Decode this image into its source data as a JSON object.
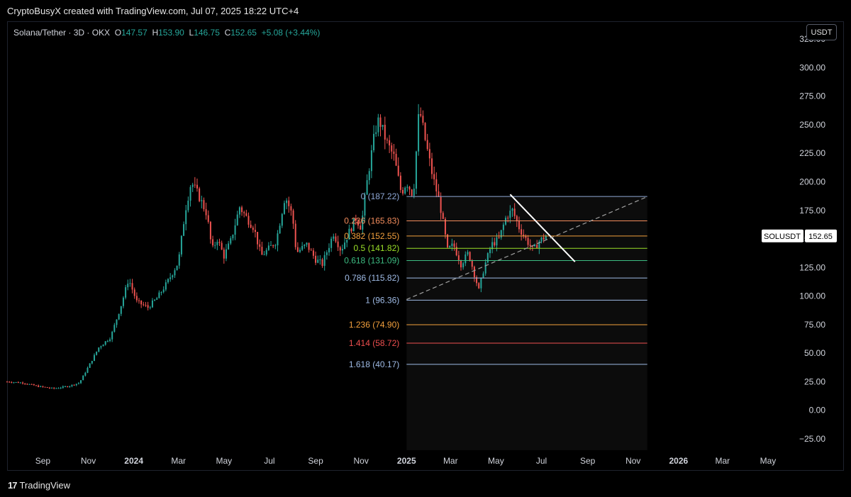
{
  "header": {
    "attribution": "CryptoBusyX created with TradingView.com, Jul 07, 2025 18:22 UTC+4"
  },
  "legend": {
    "symbol": "Solana/Tether · 3D · OKX",
    "open_label": "O",
    "open": "147.57",
    "high_label": "H",
    "high": "153.90",
    "low_label": "L",
    "low": "146.75",
    "close_label": "C",
    "close": "152.65",
    "change": "+5.08 (+3.44%)"
  },
  "currency_button": "USDT",
  "footer": {
    "brand": "TradingView",
    "logo_glyph": "17"
  },
  "colors": {
    "up": "#26a69a",
    "down": "#ef5350",
    "background": "#000000"
  },
  "chart_data": {
    "type": "candlestick",
    "symbol": "SOLUSDT",
    "title": "Solana/Tether · 3D · OKX",
    "last_price": 152.65,
    "price_tag_label": "SOLUSDT",
    "price_tag_value": "152.65",
    "ylim": [
      -35,
      340
    ],
    "y_ticks": [
      -25,
      0,
      25,
      50,
      75,
      100,
      125,
      150,
      175,
      200,
      225,
      250,
      275,
      300,
      325
    ],
    "y_tick_labels": [
      "−25.00",
      "0.00",
      "25.00",
      "50.00",
      "75.00",
      "100.00",
      "125.00",
      "150.00",
      "175.00",
      "200.00",
      "225.00",
      "250.00",
      "275.00",
      "300.00",
      "325.00"
    ],
    "x_ticks": [
      {
        "date": "2023-09-01",
        "label": "Sep",
        "bold": false
      },
      {
        "date": "2023-11-01",
        "label": "Nov",
        "bold": false
      },
      {
        "date": "2024-01-01",
        "label": "2024",
        "bold": true
      },
      {
        "date": "2024-03-01",
        "label": "Mar",
        "bold": false
      },
      {
        "date": "2024-05-01",
        "label": "May",
        "bold": false
      },
      {
        "date": "2024-07-01",
        "label": "Jul",
        "bold": false
      },
      {
        "date": "2024-09-01",
        "label": "Sep",
        "bold": false
      },
      {
        "date": "2024-11-01",
        "label": "Nov",
        "bold": false
      },
      {
        "date": "2025-01-01",
        "label": "2025",
        "bold": true
      },
      {
        "date": "2025-03-01",
        "label": "Mar",
        "bold": false
      },
      {
        "date": "2025-05-01",
        "label": "May",
        "bold": false
      },
      {
        "date": "2025-07-01",
        "label": "Jul",
        "bold": false
      },
      {
        "date": "2025-09-01",
        "label": "Sep",
        "bold": false
      },
      {
        "date": "2025-11-01",
        "label": "Nov",
        "bold": false
      },
      {
        "date": "2026-01-01",
        "label": "2026",
        "bold": true
      },
      {
        "date": "2026-03-01",
        "label": "Mar",
        "bold": false
      },
      {
        "date": "2026-05-01",
        "label": "May",
        "bold": false
      }
    ],
    "x_range": [
      "2023-07-15",
      "2026-06-10"
    ],
    "price_path": [
      [
        "2023-07-15",
        25
      ],
      [
        "2023-08-05",
        24
      ],
      [
        "2023-08-25",
        21
      ],
      [
        "2023-09-15",
        19
      ],
      [
        "2023-10-05",
        21
      ],
      [
        "2023-10-20",
        24
      ],
      [
        "2023-11-01",
        38
      ],
      [
        "2023-11-15",
        55
      ],
      [
        "2023-12-01",
        64
      ],
      [
        "2023-12-15",
        92
      ],
      [
        "2023-12-25",
        115
      ],
      [
        "2024-01-05",
        95
      ],
      [
        "2024-01-20",
        90
      ],
      [
        "2024-02-01",
        98
      ],
      [
        "2024-02-15",
        112
      ],
      [
        "2024-03-01",
        130
      ],
      [
        "2024-03-10",
        175
      ],
      [
        "2024-03-18",
        200
      ],
      [
        "2024-03-28",
        188
      ],
      [
        "2024-04-08",
        172
      ],
      [
        "2024-04-15",
        140
      ],
      [
        "2024-04-22",
        150
      ],
      [
        "2024-05-01",
        135
      ],
      [
        "2024-05-10",
        148
      ],
      [
        "2024-05-22",
        178
      ],
      [
        "2024-06-01",
        168
      ],
      [
        "2024-06-10",
        160
      ],
      [
        "2024-06-20",
        135
      ],
      [
        "2024-07-01",
        142
      ],
      [
        "2024-07-10",
        148
      ],
      [
        "2024-07-22",
        188
      ],
      [
        "2024-08-01",
        170
      ],
      [
        "2024-08-06",
        138
      ],
      [
        "2024-08-20",
        145
      ],
      [
        "2024-09-01",
        132
      ],
      [
        "2024-09-10",
        128
      ],
      [
        "2024-09-25",
        155
      ],
      [
        "2024-10-05",
        140
      ],
      [
        "2024-10-15",
        155
      ],
      [
        "2024-10-25",
        168
      ],
      [
        "2024-11-01",
        160
      ],
      [
        "2024-11-10",
        205
      ],
      [
        "2024-11-20",
        245
      ],
      [
        "2024-11-25",
        255
      ],
      [
        "2024-12-05",
        235
      ],
      [
        "2024-12-15",
        222
      ],
      [
        "2024-12-25",
        190
      ],
      [
        "2025-01-01",
        200
      ],
      [
        "2025-01-10",
        188
      ],
      [
        "2025-01-18",
        265
      ],
      [
        "2025-01-25",
        240
      ],
      [
        "2025-02-05",
        205
      ],
      [
        "2025-02-15",
        180
      ],
      [
        "2025-02-25",
        140
      ],
      [
        "2025-03-05",
        145
      ],
      [
        "2025-03-15",
        128
      ],
      [
        "2025-03-25",
        138
      ],
      [
        "2025-04-08",
        105
      ],
      [
        "2025-04-15",
        125
      ],
      [
        "2025-04-25",
        145
      ],
      [
        "2025-05-05",
        150
      ],
      [
        "2025-05-15",
        170
      ],
      [
        "2025-05-23",
        175
      ],
      [
        "2025-06-01",
        160
      ],
      [
        "2025-06-10",
        150
      ],
      [
        "2025-06-20",
        140
      ],
      [
        "2025-06-28",
        148
      ],
      [
        "2025-07-07",
        152.65
      ]
    ],
    "fibonacci": {
      "start_date": "2025-01-01",
      "end_date": "2025-11-20",
      "levels": [
        {
          "ratio": "0",
          "price": 187.22,
          "label": "0 (187.22)",
          "color": "#8fa8d6"
        },
        {
          "ratio": "0.236",
          "price": 165.83,
          "label": "0.236 (165.83)",
          "color": "#f28c5c"
        },
        {
          "ratio": "0.382",
          "price": 152.55,
          "label": "0.382 (152.55)",
          "color": "#f2a03d"
        },
        {
          "ratio": "0.5",
          "price": 141.82,
          "label": "0.5 (141.82)",
          "color": "#9be028"
        },
        {
          "ratio": "0.618",
          "price": 131.09,
          "label": "0.618 (131.09)",
          "color": "#3dbc82"
        },
        {
          "ratio": "0.786",
          "price": 115.82,
          "label": "0.786 (115.82)",
          "color": "#9fbbe6"
        },
        {
          "ratio": "1",
          "price": 96.36,
          "label": "1 (96.36)",
          "color": "#9fbbe6"
        },
        {
          "ratio": "1.236",
          "price": 74.9,
          "label": "1.236 (74.90)",
          "color": "#f2a03d"
        },
        {
          "ratio": "1.414",
          "price": 58.72,
          "label": "1.414 (58.72)",
          "color": "#ef4f4f"
        },
        {
          "ratio": "1.618",
          "price": 40.17,
          "label": "1.618 (40.17)",
          "color": "#9fbbe6"
        }
      ]
    },
    "trendlines": [
      {
        "name": "descending resistance",
        "style": "solid",
        "color": "#ffffff",
        "from": [
          "2025-05-20",
          189
        ],
        "to": [
          "2025-08-15",
          130
        ]
      },
      {
        "name": "ascending support",
        "style": "dashed",
        "color": "#a0a0a0",
        "from": [
          "2025-01-01",
          97
        ],
        "to": [
          "2025-11-20",
          187
        ]
      }
    ]
  }
}
